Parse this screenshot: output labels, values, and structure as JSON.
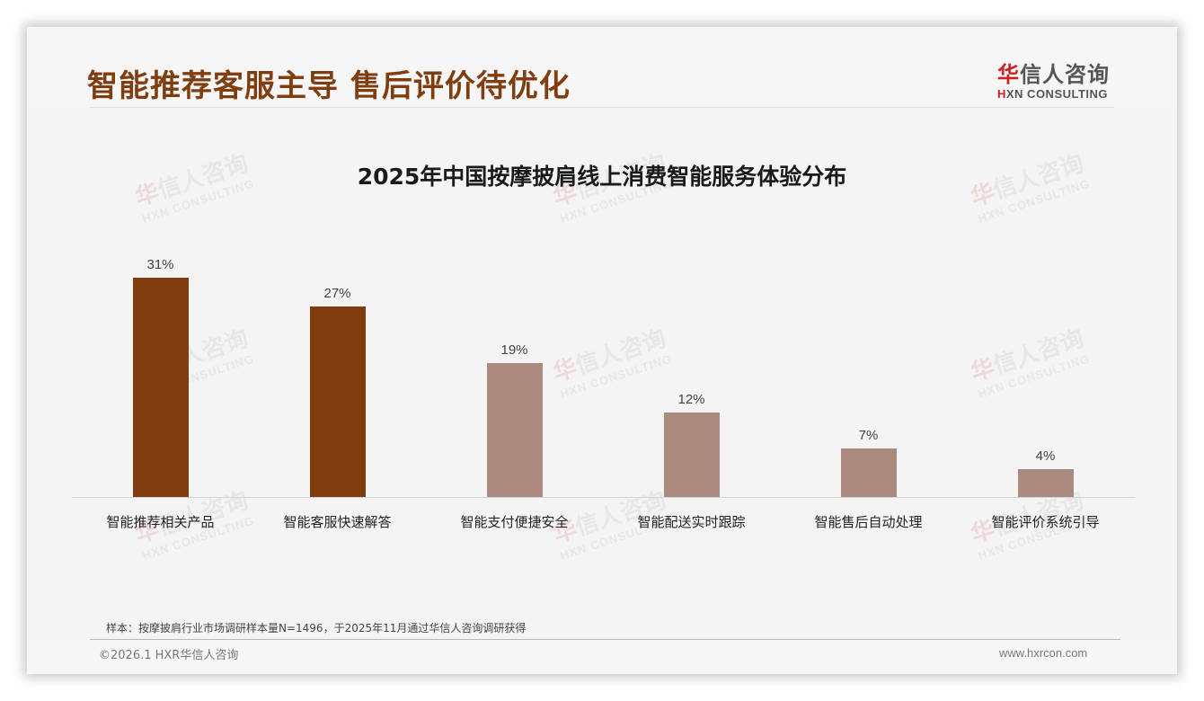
{
  "header": {
    "title": "智能推荐客服主导 售后评价待优化",
    "logo": {
      "cn_accent": "华",
      "cn_rest": "信人咨询",
      "en_accent": "H",
      "en_rest": "XN CONSULTING"
    }
  },
  "watermark": {
    "cn_accent": "华",
    "cn_rest": "信人咨询",
    "en": "HXN CONSULTING"
  },
  "chart_data": {
    "type": "bar",
    "title": "2025年中国按摩披肩线上消费智能服务体验分布",
    "categories": [
      "智能推荐相关产品",
      "智能客服快速解答",
      "智能支付便捷安全",
      "智能配送实时跟踪",
      "智能售后自动处理",
      "智能评价系统引导"
    ],
    "values": [
      31,
      27,
      19,
      12,
      7,
      4
    ],
    "value_labels": [
      "31%",
      "27%",
      "19%",
      "12%",
      "7%",
      "4%"
    ],
    "colors": [
      "#7f3d10",
      "#7f3d10",
      "#ab8b80",
      "#ab8b80",
      "#ab8b80",
      "#ab8b80"
    ],
    "xlabel": "",
    "ylabel": "",
    "ylim": [
      0,
      40
    ],
    "grid": false,
    "legend": "none",
    "unit": "%"
  },
  "footer": {
    "note": "样本：按摩披肩行业市场调研样本量N=1496，于2025年11月通过华信人咨询调研获得",
    "copyright": "©2026.1 HXR华信人咨询",
    "website": "www.hxrcon.com"
  }
}
